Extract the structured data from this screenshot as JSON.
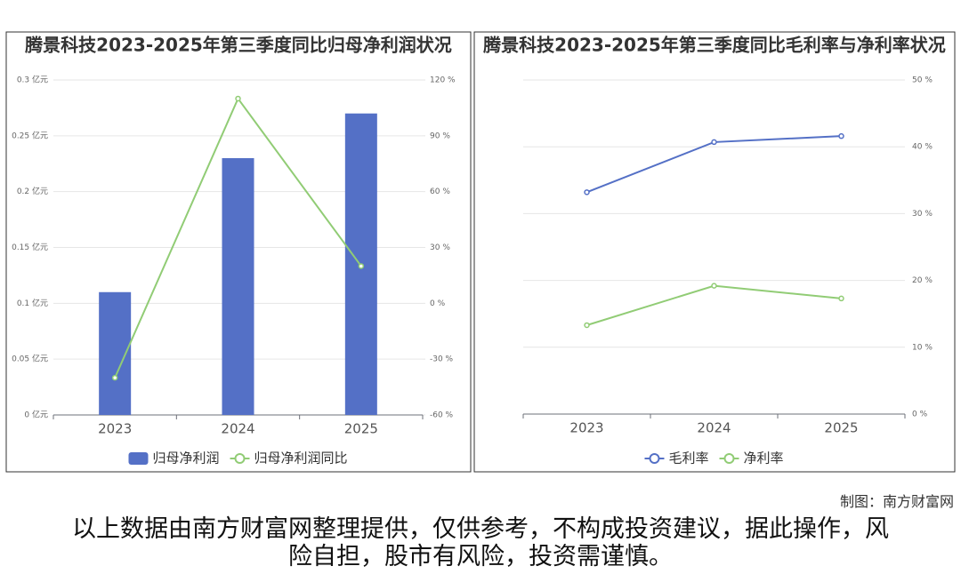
{
  "chart_data": [
    {
      "type": "bar",
      "title": "腾景科技2023-2025年第三季度同比归母净利润状况",
      "categories": [
        "2023",
        "2024",
        "2025"
      ],
      "series": [
        {
          "name": "归母净利润",
          "color": "#5470c6",
          "type": "bar",
          "values": [
            0.11,
            0.23,
            0.27
          ]
        },
        {
          "name": "归母净利润同比",
          "color": "#91cc75",
          "type": "line",
          "axis": "y2",
          "values": [
            -40,
            110,
            20
          ]
        }
      ],
      "ylim": [
        0,
        0.3
      ],
      "yticks": [
        {
          "value": 0,
          "label": "0 亿元"
        },
        {
          "value": 0.05,
          "label": "0.05 亿元"
        },
        {
          "value": 0.1,
          "label": "0.1 亿元"
        },
        {
          "value": 0.15,
          "label": "0.15 亿元"
        },
        {
          "value": 0.2,
          "label": "0.2 亿元"
        },
        {
          "value": 0.25,
          "label": "0.25 亿元"
        },
        {
          "value": 0.3,
          "label": "0.3 亿元"
        }
      ],
      "y2lim": [
        -60,
        120
      ],
      "y2ticks": [
        {
          "value": -60,
          "label": "-60 %"
        },
        {
          "value": -30,
          "label": "-30 %"
        },
        {
          "value": 0,
          "label": "0 %"
        },
        {
          "value": 30,
          "label": "30 %"
        },
        {
          "value": 60,
          "label": "60 %"
        },
        {
          "value": 90,
          "label": "90 %"
        },
        {
          "value": 120,
          "label": "120 %"
        }
      ],
      "grid": true,
      "legend": "bottom"
    },
    {
      "type": "line",
      "title": "腾景科技2023-2025年第三季度同比毛利率与净利率状况",
      "categories": [
        "2023",
        "2024",
        "2025"
      ],
      "series": [
        {
          "name": "毛利率",
          "color": "#5470c6",
          "type": "line",
          "values": [
            33.2,
            40.7,
            41.6
          ]
        },
        {
          "name": "净利率",
          "color": "#91cc75",
          "type": "line",
          "values": [
            13.3,
            19.2,
            17.3
          ]
        }
      ],
      "ylim": [
        0,
        50
      ],
      "yticks": [
        {
          "value": 0,
          "label": "0 %"
        },
        {
          "value": 10,
          "label": "10 %"
        },
        {
          "value": 20,
          "label": "20 %"
        },
        {
          "value": 30,
          "label": "30 %"
        },
        {
          "value": 40,
          "label": "40 %"
        },
        {
          "value": 50,
          "label": "50 %"
        }
      ],
      "yaxis_position": "right",
      "grid": true,
      "legend": "bottom"
    }
  ],
  "credit": "制图：南方财富网",
  "disclaimer": "以上数据由南方财富网整理提供，仅供参考，不构成投资建议，据此操作，风险自担，股市有风险，投资需谨慎。"
}
